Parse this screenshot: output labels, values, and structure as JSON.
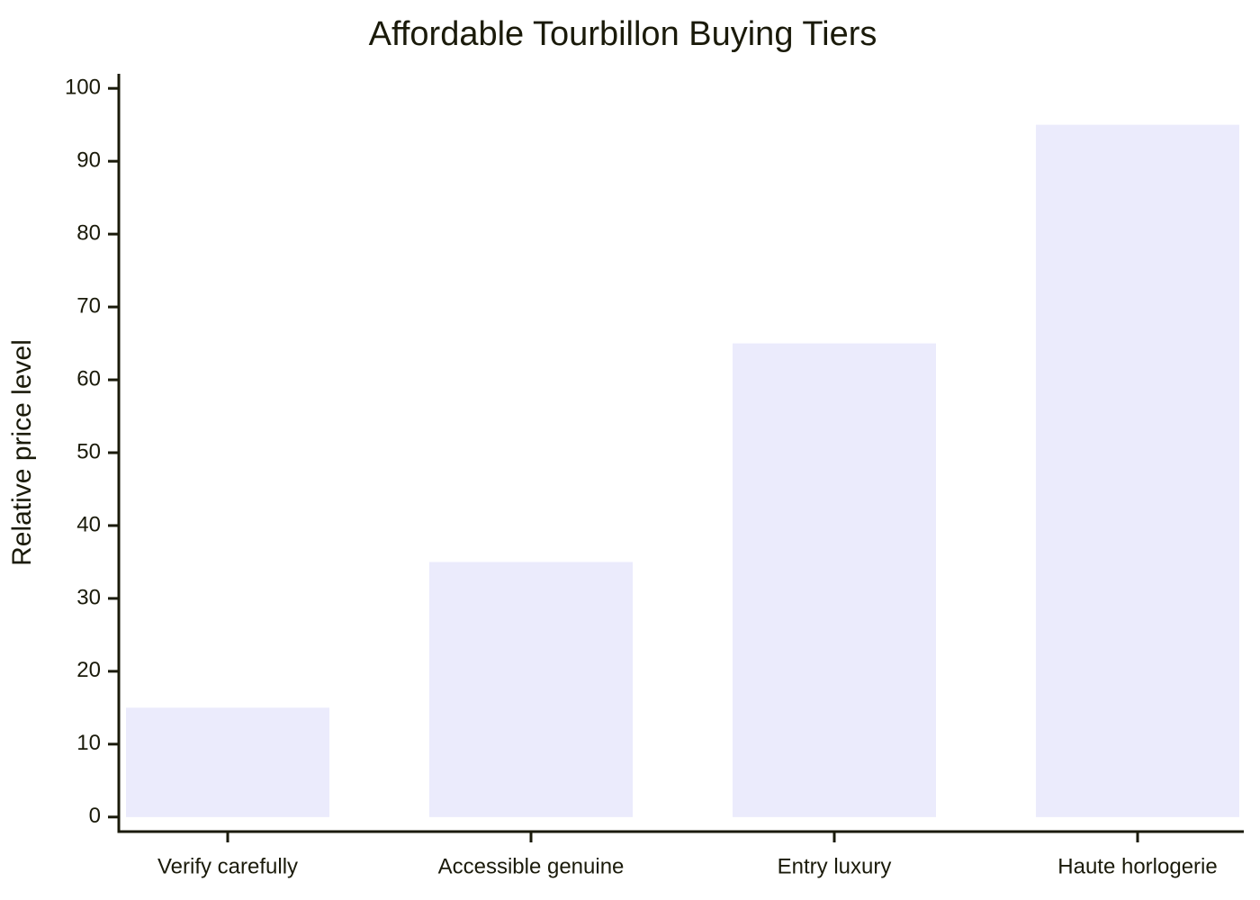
{
  "chart_data": {
    "type": "bar",
    "title": "Affordable Tourbillon Buying Tiers",
    "y_label": "Relative price level",
    "categories": [
      "Verify carefully",
      "Accessible genuine",
      "Entry luxury",
      "Haute horlogerie"
    ],
    "values": [
      15,
      35,
      65,
      95
    ],
    "color": "#ebebfc",
    "ylim": [
      -2,
      102
    ],
    "yticks": [
      0,
      10,
      20,
      30,
      40,
      50,
      60,
      70,
      80,
      90,
      100
    ],
    "grid": false
  }
}
